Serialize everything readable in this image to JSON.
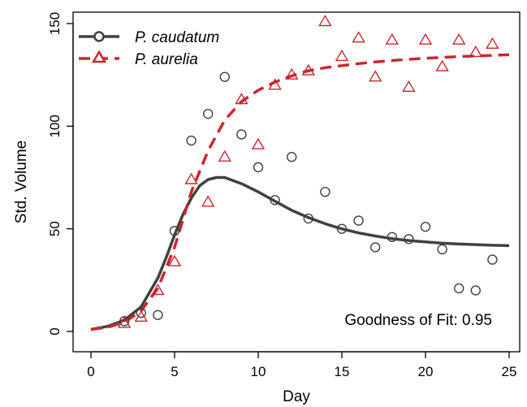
{
  "chart_data": {
    "type": "scatter",
    "xlabel": "Day",
    "ylabel": "Std. Volume",
    "xlim": [
      0,
      25
    ],
    "ylim": [
      0,
      150
    ],
    "xticks": [
      0,
      5,
      10,
      15,
      20,
      25
    ],
    "yticks": [
      0,
      50,
      100,
      150
    ],
    "grid": false,
    "legend_position": "top-left",
    "annotation": "Goodness of Fit: 0.95",
    "series": [
      {
        "name": "P. caudatum",
        "marker": "circle",
        "line_style": "solid",
        "color": "#404040",
        "points": [
          [
            2,
            5
          ],
          [
            3,
            9
          ],
          [
            4,
            8
          ],
          [
            5,
            49
          ],
          [
            6,
            93
          ],
          [
            7,
            106
          ],
          [
            8,
            124
          ],
          [
            9,
            96
          ],
          [
            10,
            80
          ],
          [
            11,
            64
          ],
          [
            12,
            85
          ],
          [
            13,
            55
          ],
          [
            14,
            68
          ],
          [
            15,
            50
          ],
          [
            16,
            54
          ],
          [
            17,
            41
          ],
          [
            18,
            46
          ],
          [
            19,
            45
          ],
          [
            20,
            51
          ],
          [
            21,
            40
          ],
          [
            22,
            21
          ],
          [
            23,
            20
          ],
          [
            24,
            35
          ]
        ],
        "fit": [
          [
            0,
            1
          ],
          [
            1,
            2.5
          ],
          [
            2,
            5.5
          ],
          [
            3,
            12
          ],
          [
            4,
            26
          ],
          [
            4.5,
            36
          ],
          [
            5,
            47
          ],
          [
            5.5,
            57
          ],
          [
            6,
            65
          ],
          [
            6.5,
            71
          ],
          [
            7,
            74
          ],
          [
            7.5,
            75
          ],
          [
            8,
            75
          ],
          [
            9,
            72
          ],
          [
            10,
            68
          ],
          [
            11,
            63.5
          ],
          [
            12,
            59
          ],
          [
            13,
            55.5
          ],
          [
            14,
            52.5
          ],
          [
            15,
            50
          ],
          [
            16,
            48
          ],
          [
            17,
            46.5
          ],
          [
            18,
            45.2
          ],
          [
            19,
            44.3
          ],
          [
            20,
            43.6
          ],
          [
            21,
            43
          ],
          [
            22,
            42.6
          ],
          [
            23,
            42.3
          ],
          [
            24,
            42
          ],
          [
            25,
            41.8
          ]
        ]
      },
      {
        "name": "P. aurelia",
        "marker": "triangle",
        "line_style": "dashed",
        "color": "#c8282d",
        "points": [
          [
            2,
            4
          ],
          [
            3,
            7
          ],
          [
            4,
            20
          ],
          [
            5,
            34
          ],
          [
            6,
            74
          ],
          [
            7,
            63
          ],
          [
            8,
            85
          ],
          [
            9,
            113
          ],
          [
            10,
            91
          ],
          [
            11,
            120
          ],
          [
            12,
            125
          ],
          [
            13,
            127
          ],
          [
            14,
            151
          ],
          [
            15,
            134
          ],
          [
            16,
            143
          ],
          [
            17,
            124
          ],
          [
            18,
            142
          ],
          [
            19,
            119
          ],
          [
            20,
            142
          ],
          [
            21,
            129
          ],
          [
            22,
            142
          ],
          [
            23,
            136
          ],
          [
            24,
            140
          ]
        ],
        "fit": [
          [
            0,
            1
          ],
          [
            1,
            2
          ],
          [
            2,
            4.5
          ],
          [
            3,
            10
          ],
          [
            4,
            21
          ],
          [
            5,
            41
          ],
          [
            6,
            68
          ],
          [
            7,
            88
          ],
          [
            8,
            103
          ],
          [
            9,
            112
          ],
          [
            10,
            117.5
          ],
          [
            11,
            121.5
          ],
          [
            12,
            124.5
          ],
          [
            13,
            127
          ],
          [
            14,
            128.5
          ],
          [
            15,
            129.5
          ],
          [
            16,
            130.5
          ],
          [
            17,
            131.3
          ],
          [
            18,
            132
          ],
          [
            19,
            132.6
          ],
          [
            20,
            133.1
          ],
          [
            21,
            133.5
          ],
          [
            22,
            133.9
          ],
          [
            23,
            134.2
          ],
          [
            24,
            134.5
          ],
          [
            25,
            134.8
          ]
        ]
      }
    ]
  }
}
